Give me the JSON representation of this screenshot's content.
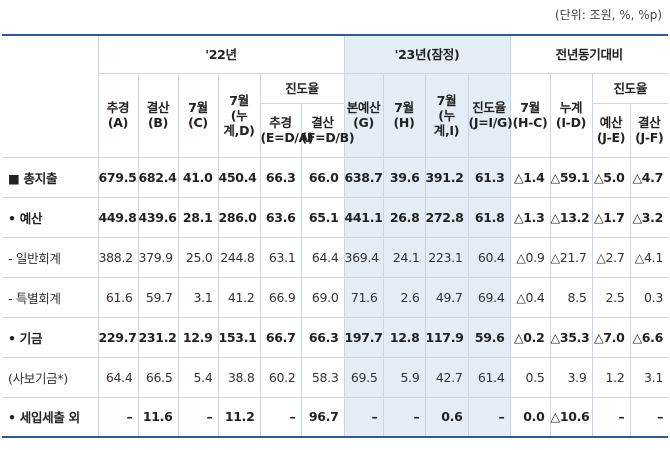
{
  "unit_note": "(단위: 조원, %, %p)",
  "header": {
    "g2022": "'22년",
    "g2023": "'23년(잠정)",
    "gyoy": "전년동기대비",
    "progress": "진도율",
    "c_a": "추경\n(A)",
    "c_b": "결산\n(B)",
    "c_c": "7월\n(C)",
    "c_d": "7월\n(누계,D)",
    "c_e": "추경\n(E=D/A)",
    "c_f": "결산\n(F=D/B)",
    "c_g": "본예산\n(G)",
    "c_h": "7월\n(H)",
    "c_i": "7월\n(누계,I)",
    "c_j": "진도율\n(J=I/G)",
    "c_hc": "7월\n(H-C)",
    "c_id": "누계\n(I-D)",
    "c_je": "예산\n(J-E)",
    "c_jf": "결산\n(J-F)"
  },
  "rows": [
    {
      "label": "■ 총지출",
      "bold": true,
      "values": [
        "679.5",
        "682.4",
        "41.0",
        "450.4",
        "66.3",
        "66.0",
        "638.7",
        "39.6",
        "391.2",
        "61.3",
        "△1.4",
        "△59.1",
        "△5.0",
        "△4.7"
      ]
    },
    {
      "label": "• 예산",
      "bold": true,
      "values": [
        "449.8",
        "439.6",
        "28.1",
        "286.0",
        "63.6",
        "65.1",
        "441.1",
        "26.8",
        "272.8",
        "61.8",
        "△1.3",
        "△13.2",
        "△1.7",
        "△3.2"
      ]
    },
    {
      "label": "- 일반회계",
      "bold": false,
      "values": [
        "388.2",
        "379.9",
        "25.0",
        "244.8",
        "63.1",
        "64.4",
        "369.4",
        "24.1",
        "223.1",
        "60.4",
        "△0.9",
        "△21.7",
        "△2.7",
        "△4.1"
      ]
    },
    {
      "label": "- 특별회계",
      "bold": false,
      "values": [
        "61.6",
        "59.7",
        "3.1",
        "41.2",
        "66.9",
        "69.0",
        "71.6",
        "2.6",
        "49.7",
        "69.4",
        "△0.4",
        "8.5",
        "2.5",
        "0.3"
      ]
    },
    {
      "label": "• 기금",
      "bold": true,
      "values": [
        "229.7",
        "231.2",
        "12.9",
        "153.1",
        "66.7",
        "66.3",
        "197.7",
        "12.8",
        "117.9",
        "59.6",
        "△0.2",
        "△35.3",
        "△7.0",
        "△6.6"
      ]
    },
    {
      "label": "(사보기금*)",
      "bold": false,
      "values": [
        "64.4",
        "66.5",
        "5.4",
        "38.8",
        "60.2",
        "58.3",
        "69.5",
        "5.9",
        "42.7",
        "61.4",
        "0.5",
        "3.9",
        "1.2",
        "3.1"
      ]
    },
    {
      "label": "• 세입세출 외",
      "bold": true,
      "values": [
        "–",
        "11.6",
        "–",
        "11.2",
        "–",
        "96.7",
        "–",
        "–",
        "0.6",
        "–",
        "0.0",
        "△10.6",
        "–",
        "–"
      ]
    }
  ]
}
